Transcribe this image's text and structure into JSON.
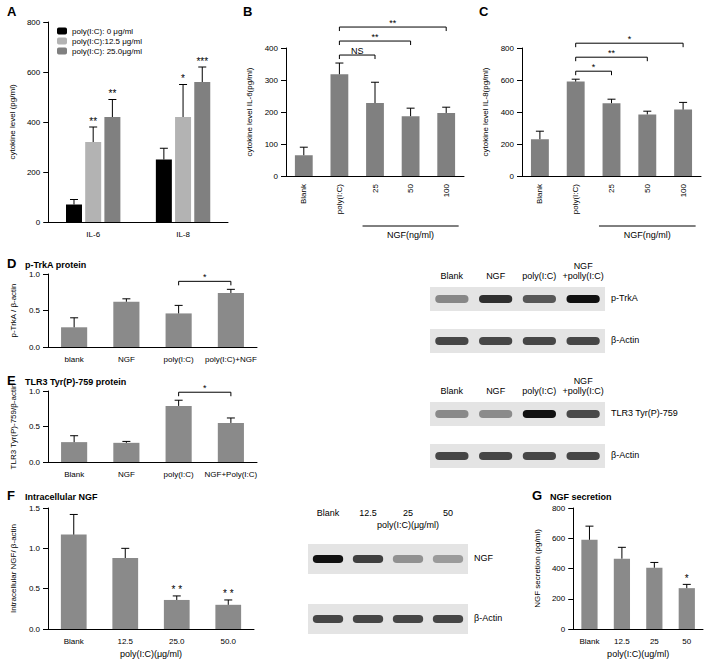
{
  "chart_data": [
    {
      "panel": "A",
      "type": "bar",
      "categories": [
        "IL-6",
        "IL-8"
      ],
      "ylabel": "cytokine level (pg/ml)",
      "ylim": [
        0,
        800
      ],
      "yticks": [
        0,
        200,
        400,
        600,
        800
      ],
      "grid": false,
      "legend": "upper left",
      "series": [
        {
          "name": "poly(I:C): 0 μg/ml",
          "color": "#000000",
          "values": [
            70,
            250
          ],
          "errors": [
            20,
            45
          ]
        },
        {
          "name": "poly(I:C):12.5 μg/ml",
          "color": "#b3b3b3",
          "values": [
            320,
            420
          ],
          "errors": [
            60,
            130
          ],
          "significance": [
            "**",
            "*"
          ]
        },
        {
          "name": "poly(I:C): 25.0μg/ml",
          "color": "#808080",
          "values": [
            420,
            560
          ],
          "errors": [
            70,
            60
          ],
          "significance": [
            "**",
            "***"
          ]
        }
      ]
    },
    {
      "panel": "B",
      "type": "bar",
      "categories": [
        "Blank",
        "poly(I:C)",
        "25",
        "50",
        "100"
      ],
      "values": [
        65,
        318,
        228,
        187,
        197
      ],
      "errors": [
        25,
        35,
        65,
        25,
        18
      ],
      "color": "#808080",
      "ylabel": "cytokine level IL-6(pg/ml)",
      "ylim": [
        0,
        400
      ],
      "yticks": [
        0,
        100,
        200,
        300,
        400
      ],
      "grid": false,
      "xlabel": {
        "text": "NGF(ng/ml)",
        "from": "25",
        "to": "100"
      },
      "brackets": [
        {
          "from": "poly(I:C)",
          "to": "25",
          "text": "NS"
        },
        {
          "from": "poly(I:C)",
          "to": "50",
          "text": "**"
        },
        {
          "from": "poly(I:C)",
          "to": "100",
          "text": "**"
        }
      ]
    },
    {
      "panel": "C",
      "type": "bar",
      "categories": [
        "Blank",
        "poly(I:C)",
        "25",
        "50",
        "100"
      ],
      "values": [
        230,
        590,
        455,
        385,
        415
      ],
      "errors": [
        50,
        15,
        25,
        20,
        45
      ],
      "color": "#808080",
      "ylabel": "cytokine level IL-8(pg/ml)",
      "ylim": [
        0,
        800
      ],
      "yticks": [
        0,
        200,
        400,
        600,
        800
      ],
      "grid": false,
      "xlabel": {
        "text": "NGF(ng/ml)",
        "from": "25",
        "to": "100"
      },
      "brackets": [
        {
          "from": "poly(I:C)",
          "to": "25",
          "text": "*"
        },
        {
          "from": "poly(I:C)",
          "to": "50",
          "text": "**"
        },
        {
          "from": "poly(I:C)",
          "to": "100",
          "text": "*"
        }
      ]
    },
    {
      "panel": "D",
      "type": "bar",
      "title": "p-TrkA protein",
      "categories": [
        "blank",
        "NGF",
        "poly(I:C)",
        "poly(I:C)+NGF"
      ],
      "values": [
        0.27,
        0.62,
        0.46,
        0.74
      ],
      "errors": [
        0.13,
        0.04,
        0.11,
        0.05
      ],
      "color": "#8a8a8a",
      "ylabel": "p-TrkA / β-actin",
      "ylim": [
        0,
        1
      ],
      "yticks": [
        {
          "value": 0,
          "label": "0.0"
        },
        {
          "value": 0.5,
          "label": "0.5"
        },
        {
          "value": 1,
          "label": "1.0"
        }
      ],
      "grid": false,
      "brackets": [
        {
          "from": "poly(I:C)",
          "to": "poly(I:C)+NGF",
          "text": "*"
        }
      ],
      "blot": {
        "lanes": [
          "Blank",
          "NGF",
          "poly(I:C)",
          "NGF\n+polly(I:C)"
        ],
        "rows": [
          "p-TrkA",
          "β-Actin"
        ]
      }
    },
    {
      "panel": "E",
      "type": "bar",
      "title": "TLR3 Tyr(P)-759 protein",
      "categories": [
        "Blank",
        "NGF",
        "poly(I:C)",
        "NGF+Poly(I:C)"
      ],
      "values": [
        0.28,
        0.27,
        0.79,
        0.55
      ],
      "errors": [
        0.09,
        0.02,
        0.08,
        0.07
      ],
      "color": "#8a8a8a",
      "ylabel": "TLR3 Tyr(P)-759/β-actin",
      "ylim": [
        0,
        1
      ],
      "yticks": [
        {
          "value": 0,
          "label": "0.0"
        },
        {
          "value": 0.5,
          "label": "0.5"
        },
        {
          "value": 1,
          "label": "1.0"
        }
      ],
      "grid": false,
      "brackets": [
        {
          "from": "poly(I:C)",
          "to": "NGF+Poly(I:C)",
          "text": "*"
        }
      ],
      "blot": {
        "lanes": [
          "Blank",
          "NGF",
          "poly(I:C)",
          "NGF\n+polly(I:C)"
        ],
        "rows": [
          "TLR3 Tyr(P)-759",
          "β-Actin"
        ]
      }
    },
    {
      "panel": "F",
      "type": "bar",
      "title": "Intracellular NGF",
      "categories": [
        "Blank",
        "12.5",
        "25.0",
        "50.0"
      ],
      "values": [
        1.17,
        0.88,
        0.36,
        0.3
      ],
      "errors": [
        0.25,
        0.12,
        0.05,
        0.06
      ],
      "color": "#8a8a8a",
      "significance": [
        null,
        null,
        "* *",
        "* *"
      ],
      "ylabel": "Intracellular NGF/ β-actin",
      "xlabel": "poly(I:C)(μg/ml)",
      "ylim": [
        0,
        1.5
      ],
      "yticks": [
        {
          "value": 0,
          "label": "0.0"
        },
        {
          "value": 0.5,
          "label": "0.5"
        },
        {
          "value": 1,
          "label": "1.0"
        },
        {
          "value": 1.5,
          "label": "1.5"
        }
      ],
      "grid": false,
      "blot": {
        "lanes": [
          "Blank",
          "12.5",
          "25",
          "50"
        ],
        "lane_title": "poly(I:C)(μg/ml)",
        "rows": [
          "NGF",
          "β-Actin"
        ]
      }
    },
    {
      "panel": "G",
      "type": "bar",
      "title": "NGF secretion",
      "categories": [
        "Blank",
        "12.5",
        "25",
        "50"
      ],
      "values": [
        590,
        465,
        405,
        270
      ],
      "errors": [
        90,
        75,
        35,
        25
      ],
      "color": "#8a8a8a",
      "significance": [
        null,
        null,
        null,
        "*"
      ],
      "ylabel": "NGF secretion (pg/ml)",
      "xlabel": "poly(I:C)(ug/ml)",
      "ylim": [
        0,
        800
      ],
      "yticks": [
        0,
        200,
        400,
        600,
        800
      ],
      "grid": false
    }
  ]
}
